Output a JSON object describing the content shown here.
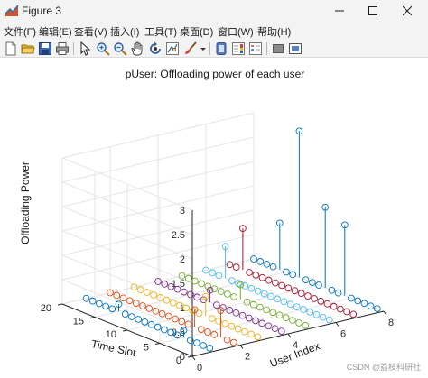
{
  "window": {
    "title": "Figure 3"
  },
  "menu": [
    "文件(F)",
    "编辑(E)",
    "查看(V)",
    "插入(I)",
    "工具(T)",
    "桌面(D)",
    "窗口(W)",
    "帮助(H)"
  ],
  "toolbar": {
    "buttons": [
      "new-figure-icon",
      "open-file-icon",
      "save-icon",
      "print-icon",
      "arrow-select-icon",
      "zoom-in-icon",
      "zoom-out-icon",
      "pan-hand-icon",
      "rotate-3d-icon",
      "data-cursor-icon",
      "brush-icon",
      "brush-dropdown-icon",
      "link-plot-icon",
      "colorbar-icon",
      "legend-icon",
      "hide-plot-tools-icon",
      "show-plot-tools-icon"
    ]
  },
  "chart_data": {
    "type": "scatter",
    "chart_kind": "stem3",
    "title": "pUser: Offloading power of each user",
    "xlabel": "User Index",
    "ylabel": "Time Slot",
    "zlabel": "Offloading Power",
    "xlim": [
      0,
      8
    ],
    "ylim": [
      0,
      20
    ],
    "zlim": [
      0,
      3
    ],
    "xticks": [
      "0",
      "2",
      "4",
      "6",
      "8"
    ],
    "yticks": [
      "0",
      "5",
      "10",
      "15",
      "20"
    ],
    "zticks": [
      "0",
      "0.5",
      "1",
      "1.5",
      "2",
      "2.5",
      "3"
    ],
    "grid": true,
    "marker": "open circle",
    "users": [
      1,
      2,
      3,
      4,
      5,
      6,
      7,
      8
    ],
    "time_slots": [
      1,
      2,
      3,
      4,
      5,
      6,
      7,
      8,
      9,
      10,
      11,
      12,
      13,
      14,
      15,
      16,
      17,
      18,
      19,
      20
    ],
    "series_colors": [
      "#0072bd",
      "#d95319",
      "#edb120",
      "#7e2f8e",
      "#77ac30",
      "#4dbeee",
      "#a2142f",
      "#0072bd"
    ],
    "nonzero_points": [
      {
        "user": 8,
        "slot": 13,
        "power": 3.0
      },
      {
        "user": 8,
        "slot": 9,
        "power": 1.65
      },
      {
        "user": 8,
        "slot": 6,
        "power": 1.45
      },
      {
        "user": 8,
        "slot": 16,
        "power": 0.95
      },
      {
        "user": 7,
        "slot": 18,
        "power": 0.85
      },
      {
        "user": 6,
        "slot": 17,
        "power": 0.65
      },
      {
        "user": 2,
        "slot": 3,
        "power": 0.55
      },
      {
        "user": 2,
        "slot": 7,
        "power": 0.35
      },
      {
        "user": 3,
        "slot": 9,
        "power": 0.4
      },
      {
        "user": 1,
        "slot": 15,
        "power": 0.15
      },
      {
        "user": 1,
        "slot": 5,
        "power": 0.15
      },
      {
        "user": 5,
        "slot": 11,
        "power": 0.3
      },
      {
        "user": 4,
        "slot": 12,
        "power": 0.25
      }
    ]
  },
  "watermark": "CSDN @荔枝科研社"
}
